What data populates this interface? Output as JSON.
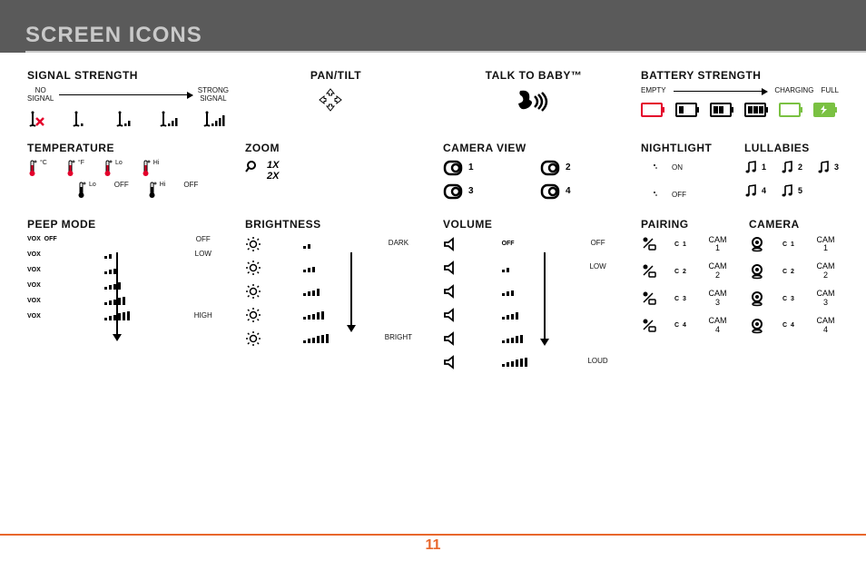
{
  "page": {
    "title": "SCREEN ICONS",
    "number": "11"
  },
  "colors": {
    "accent": "#e8672c",
    "red": "#e4002b",
    "green": "#7ac142",
    "gray": "#5a5a5a"
  },
  "signal": {
    "title": "SIGNAL STRENGTH",
    "left_label_line1": "NO",
    "left_label_line2": "SIGNAL",
    "right_label_line1": "STRONG",
    "right_label_line2": "SIGNAL",
    "bars": [
      0,
      1,
      2,
      3,
      4
    ]
  },
  "pan_tilt": {
    "title": "PAN/TILT"
  },
  "talk": {
    "title": "TALK TO BABY™"
  },
  "battery": {
    "title": "BATTERY STRENGTH",
    "empty_label": "EMPTY",
    "charging_label": "CHARGING",
    "full_label": "FULL"
  },
  "temperature": {
    "title": "TEMPERATURE",
    "units": [
      "°C",
      "°F",
      "Lo",
      "Hi"
    ],
    "row2": [
      "Lo",
      "OFF",
      "Hi",
      "OFF"
    ]
  },
  "zoom": {
    "title": "ZOOM",
    "levels": [
      "1X",
      "2X"
    ]
  },
  "camera_view": {
    "title": "CAMERA VIEW",
    "nums": [
      "1",
      "2",
      "3",
      "4"
    ]
  },
  "nightlight": {
    "title": "NIGHTLIGHT",
    "on": "ON",
    "off": "OFF"
  },
  "lullabies": {
    "title": "LULLABIES",
    "nums": [
      "1",
      "2",
      "3",
      "4",
      "5"
    ]
  },
  "peep": {
    "title": "PEEP MODE",
    "vox": "VOX",
    "off_small": "OFF",
    "off": "OFF",
    "low": "LOW",
    "high": "HIGH",
    "heights": [
      [
        0
      ],
      [
        3,
        5
      ],
      [
        3,
        5,
        6
      ],
      [
        3,
        5,
        6,
        8
      ],
      [
        3,
        5,
        6,
        8,
        9
      ],
      [
        3,
        5,
        6,
        8,
        9,
        10
      ]
    ]
  },
  "brightness": {
    "title": "BRIGHTNESS",
    "dark": "DARK",
    "bright": "BRIGHT",
    "heights": [
      [
        3,
        5
      ],
      [
        3,
        5,
        6
      ],
      [
        3,
        5,
        6,
        8
      ],
      [
        3,
        5,
        6,
        8,
        9
      ],
      [
        3,
        5,
        6,
        8,
        9,
        10
      ]
    ]
  },
  "volume": {
    "title": "VOLUME",
    "off_small": "OFF",
    "off": "OFF",
    "low": "LOW",
    "loud": "LOUD",
    "heights": [
      [
        0
      ],
      [
        3,
        5
      ],
      [
        3,
        5,
        6
      ],
      [
        3,
        5,
        6,
        8
      ],
      [
        3,
        5,
        6,
        8,
        9
      ],
      [
        3,
        5,
        6,
        8,
        9,
        10
      ]
    ]
  },
  "pairing": {
    "title": "PAIRING",
    "items": [
      [
        "C 1",
        "CAM",
        "1"
      ],
      [
        "C 2",
        "CAM",
        "2"
      ],
      [
        "C 3",
        "CAM",
        "3"
      ],
      [
        "C 4",
        "CAM",
        "4"
      ]
    ]
  },
  "camera": {
    "title": "CAMERA",
    "items": [
      [
        "C 1",
        "CAM",
        "1"
      ],
      [
        "C 2",
        "CAM",
        "2"
      ],
      [
        "C 3",
        "CAM",
        "3"
      ],
      [
        "C 4",
        "CAM",
        "4"
      ]
    ]
  }
}
